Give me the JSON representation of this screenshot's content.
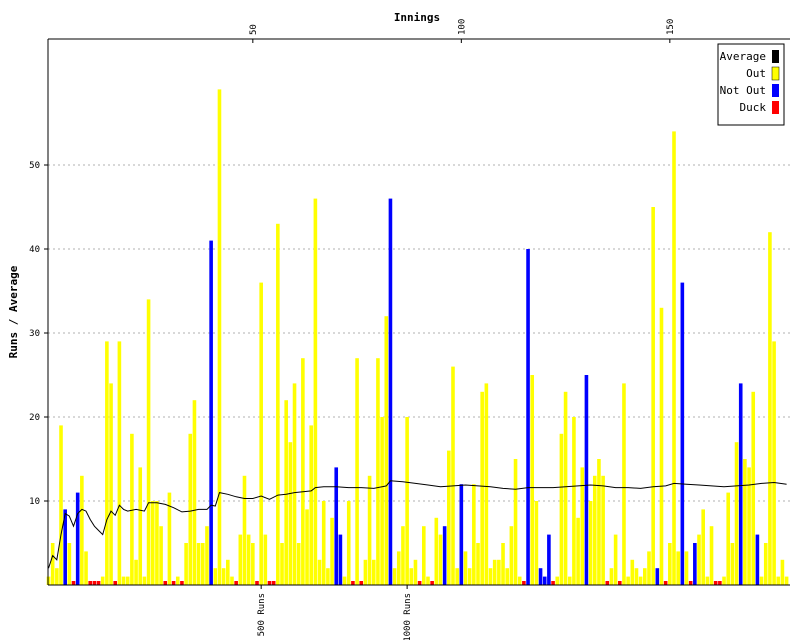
{
  "chart_data": {
    "type": "bar",
    "title": "",
    "xlabel": "Innings",
    "ylabel": "Runs / Average",
    "x_ticks": [
      50,
      100,
      150
    ],
    "y_ticks": [
      10,
      20,
      30,
      40,
      50
    ],
    "ylim": [
      0,
      65
    ],
    "xlim": [
      1,
      178
    ],
    "grid": true,
    "legend_position": "top-right",
    "milestones": [
      {
        "label": "500 Runs",
        "innings": 52
      },
      {
        "label": "1000 Runs",
        "innings": 87
      }
    ],
    "colors": {
      "average": "#000000",
      "out": "#ffff00",
      "not_out": "#0000ff",
      "duck": "#ff0000"
    },
    "series": [
      {
        "name": "Average",
        "type": "line"
      },
      {
        "name": "Out",
        "type": "bar"
      },
      {
        "name": "Not Out",
        "type": "bar"
      },
      {
        "name": "Duck",
        "type": "bar"
      }
    ],
    "innings": [
      [
        1,
        1,
        "out"
      ],
      [
        2,
        5,
        "out"
      ],
      [
        3,
        2,
        "out"
      ],
      [
        4,
        19,
        "out"
      ],
      [
        5,
        9,
        "not_out"
      ],
      [
        6,
        5,
        "out"
      ],
      [
        7,
        0,
        "duck"
      ],
      [
        8,
        11,
        "not_out"
      ],
      [
        9,
        13,
        "out"
      ],
      [
        10,
        4,
        "out"
      ],
      [
        11,
        0,
        "duck"
      ],
      [
        12,
        0,
        "duck"
      ],
      [
        13,
        0,
        "duck"
      ],
      [
        14,
        1,
        "out"
      ],
      [
        15,
        29,
        "out"
      ],
      [
        16,
        24,
        "out"
      ],
      [
        17,
        0,
        "duck"
      ],
      [
        18,
        29,
        "out"
      ],
      [
        19,
        1,
        "out"
      ],
      [
        20,
        1,
        "out"
      ],
      [
        21,
        18,
        "out"
      ],
      [
        22,
        3,
        "out"
      ],
      [
        23,
        14,
        "out"
      ],
      [
        24,
        1,
        "out"
      ],
      [
        25,
        34,
        "out"
      ],
      [
        26,
        10,
        "out"
      ],
      [
        27,
        10,
        "out"
      ],
      [
        28,
        7,
        "out"
      ],
      [
        29,
        0,
        "duck"
      ],
      [
        30,
        11,
        "out"
      ],
      [
        31,
        0,
        "duck"
      ],
      [
        32,
        1,
        "out"
      ],
      [
        33,
        0,
        "duck"
      ],
      [
        34,
        5,
        "out"
      ],
      [
        35,
        18,
        "out"
      ],
      [
        36,
        22,
        "out"
      ],
      [
        37,
        5,
        "out"
      ],
      [
        38,
        5,
        "out"
      ],
      [
        39,
        7,
        "out"
      ],
      [
        40,
        41,
        "not_out"
      ],
      [
        41,
        2,
        "out"
      ],
      [
        42,
        59,
        "out"
      ],
      [
        43,
        2,
        "out"
      ],
      [
        44,
        3,
        "out"
      ],
      [
        45,
        1,
        "out"
      ],
      [
        46,
        0,
        "duck"
      ],
      [
        47,
        6,
        "out"
      ],
      [
        48,
        13,
        "out"
      ],
      [
        49,
        6,
        "out"
      ],
      [
        50,
        5,
        "out"
      ],
      [
        51,
        0,
        "duck"
      ],
      [
        52,
        36,
        "out"
      ],
      [
        53,
        6,
        "out"
      ],
      [
        54,
        0,
        "duck"
      ],
      [
        55,
        0,
        "duck"
      ],
      [
        56,
        43,
        "out"
      ],
      [
        57,
        5,
        "out"
      ],
      [
        58,
        22,
        "out"
      ],
      [
        59,
        17,
        "out"
      ],
      [
        60,
        24,
        "out"
      ],
      [
        61,
        5,
        "out"
      ],
      [
        62,
        27,
        "out"
      ],
      [
        63,
        9,
        "out"
      ],
      [
        64,
        19,
        "out"
      ],
      [
        65,
        46,
        "out"
      ],
      [
        66,
        3,
        "out"
      ],
      [
        67,
        10,
        "out"
      ],
      [
        68,
        2,
        "out"
      ],
      [
        69,
        8,
        "out"
      ],
      [
        70,
        14,
        "not_out"
      ],
      [
        71,
        6,
        "not_out"
      ],
      [
        72,
        1,
        "out"
      ],
      [
        73,
        10,
        "out"
      ],
      [
        74,
        0,
        "duck"
      ],
      [
        75,
        27,
        "out"
      ],
      [
        76,
        0,
        "duck"
      ],
      [
        77,
        3,
        "out"
      ],
      [
        78,
        13,
        "out"
      ],
      [
        79,
        3,
        "out"
      ],
      [
        80,
        27,
        "out"
      ],
      [
        81,
        20,
        "out"
      ],
      [
        82,
        32,
        "out"
      ],
      [
        83,
        46,
        "not_out"
      ],
      [
        84,
        2,
        "out"
      ],
      [
        85,
        4,
        "out"
      ],
      [
        86,
        7,
        "out"
      ],
      [
        87,
        20,
        "out"
      ],
      [
        88,
        2,
        "out"
      ],
      [
        89,
        3,
        "out"
      ],
      [
        90,
        0,
        "duck"
      ],
      [
        91,
        7,
        "out"
      ],
      [
        92,
        1,
        "out"
      ],
      [
        93,
        0,
        "duck"
      ],
      [
        94,
        8,
        "out"
      ],
      [
        95,
        6,
        "out"
      ],
      [
        96,
        7,
        "not_out"
      ],
      [
        97,
        16,
        "out"
      ],
      [
        98,
        26,
        "out"
      ],
      [
        99,
        2,
        "out"
      ],
      [
        100,
        12,
        "not_out"
      ],
      [
        101,
        4,
        "out"
      ],
      [
        102,
        2,
        "out"
      ],
      [
        103,
        12,
        "out"
      ],
      [
        104,
        5,
        "out"
      ],
      [
        105,
        23,
        "out"
      ],
      [
        106,
        24,
        "out"
      ],
      [
        107,
        2,
        "out"
      ],
      [
        108,
        3,
        "out"
      ],
      [
        109,
        3,
        "out"
      ],
      [
        110,
        5,
        "out"
      ],
      [
        111,
        2,
        "out"
      ],
      [
        112,
        7,
        "out"
      ],
      [
        113,
        15,
        "out"
      ],
      [
        114,
        1,
        "out"
      ],
      [
        115,
        0,
        "duck"
      ],
      [
        116,
        40,
        "not_out"
      ],
      [
        117,
        25,
        "out"
      ],
      [
        118,
        10,
        "out"
      ],
      [
        119,
        2,
        "not_out"
      ],
      [
        120,
        1,
        "not_out"
      ],
      [
        121,
        6,
        "not_out"
      ],
      [
        122,
        0,
        "duck"
      ],
      [
        123,
        1,
        "out"
      ],
      [
        124,
        18,
        "out"
      ],
      [
        125,
        23,
        "out"
      ],
      [
        126,
        1,
        "out"
      ],
      [
        127,
        20,
        "out"
      ],
      [
        128,
        8,
        "out"
      ],
      [
        129,
        14,
        "out"
      ],
      [
        130,
        25,
        "not_out"
      ],
      [
        131,
        10,
        "out"
      ],
      [
        132,
        13,
        "out"
      ],
      [
        133,
        15,
        "out"
      ],
      [
        134,
        13,
        "out"
      ],
      [
        135,
        0,
        "duck"
      ],
      [
        136,
        2,
        "out"
      ],
      [
        137,
        6,
        "out"
      ],
      [
        138,
        0,
        "duck"
      ],
      [
        139,
        24,
        "out"
      ],
      [
        140,
        1,
        "out"
      ],
      [
        141,
        3,
        "out"
      ],
      [
        142,
        2,
        "out"
      ],
      [
        143,
        1,
        "out"
      ],
      [
        144,
        2,
        "out"
      ],
      [
        145,
        4,
        "out"
      ],
      [
        146,
        45,
        "out"
      ],
      [
        147,
        2,
        "not_out"
      ],
      [
        148,
        33,
        "out"
      ],
      [
        149,
        0,
        "duck"
      ],
      [
        150,
        5,
        "out"
      ],
      [
        151,
        54,
        "out"
      ],
      [
        152,
        4,
        "out"
      ],
      [
        153,
        36,
        "not_out"
      ],
      [
        154,
        4,
        "out"
      ],
      [
        155,
        0,
        "duck"
      ],
      [
        156,
        5,
        "not_out"
      ],
      [
        157,
        6,
        "out"
      ],
      [
        158,
        9,
        "out"
      ],
      [
        159,
        1,
        "out"
      ],
      [
        160,
        7,
        "out"
      ],
      [
        161,
        0,
        "duck"
      ],
      [
        162,
        0,
        "duck"
      ],
      [
        163,
        1,
        "out"
      ],
      [
        164,
        11,
        "out"
      ],
      [
        165,
        5,
        "out"
      ],
      [
        166,
        17,
        "out"
      ],
      [
        167,
        24,
        "not_out"
      ],
      [
        168,
        15,
        "out"
      ],
      [
        169,
        14,
        "out"
      ],
      [
        170,
        23,
        "out"
      ],
      [
        171,
        6,
        "not_out"
      ],
      [
        172,
        1,
        "out"
      ],
      [
        173,
        5,
        "out"
      ],
      [
        174,
        42,
        "out"
      ],
      [
        175,
        29,
        "out"
      ],
      [
        176,
        1,
        "out"
      ],
      [
        177,
        3,
        "out"
      ],
      [
        178,
        1,
        "out"
      ]
    ],
    "average_trend": [
      [
        1,
        2.0
      ],
      [
        2,
        3.5
      ],
      [
        3,
        3.0
      ],
      [
        4,
        6.0
      ],
      [
        5,
        8.5
      ],
      [
        6,
        8.2
      ],
      [
        7,
        7.0
      ],
      [
        8,
        8.5
      ],
      [
        9,
        9.0
      ],
      [
        10,
        8.8
      ],
      [
        11,
        7.8
      ],
      [
        12,
        7.0
      ],
      [
        13,
        6.5
      ],
      [
        14,
        6.0
      ],
      [
        15,
        7.8
      ],
      [
        16,
        8.8
      ],
      [
        17,
        8.3
      ],
      [
        18,
        9.5
      ],
      [
        19,
        9.0
      ],
      [
        20,
        8.8
      ],
      [
        22,
        9.0
      ],
      [
        24,
        8.8
      ],
      [
        25,
        9.8
      ],
      [
        27,
        9.8
      ],
      [
        29,
        9.6
      ],
      [
        31,
        9.2
      ],
      [
        33,
        8.7
      ],
      [
        35,
        8.8
      ],
      [
        37,
        9.0
      ],
      [
        39,
        9.0
      ],
      [
        40,
        9.5
      ],
      [
        41,
        9.4
      ],
      [
        42,
        11.0
      ],
      [
        44,
        10.8
      ],
      [
        46,
        10.5
      ],
      [
        48,
        10.3
      ],
      [
        50,
        10.3
      ],
      [
        52,
        10.6
      ],
      [
        54,
        10.2
      ],
      [
        56,
        10.7
      ],
      [
        58,
        10.8
      ],
      [
        60,
        11.0
      ],
      [
        62,
        11.1
      ],
      [
        64,
        11.2
      ],
      [
        65,
        11.6
      ],
      [
        67,
        11.7
      ],
      [
        70,
        11.7
      ],
      [
        73,
        11.6
      ],
      [
        76,
        11.6
      ],
      [
        79,
        11.5
      ],
      [
        82,
        11.8
      ],
      [
        83,
        12.4
      ],
      [
        86,
        12.3
      ],
      [
        89,
        12.1
      ],
      [
        92,
        11.9
      ],
      [
        95,
        11.7
      ],
      [
        98,
        11.8
      ],
      [
        101,
        11.9
      ],
      [
        104,
        11.8
      ],
      [
        107,
        11.7
      ],
      [
        110,
        11.5
      ],
      [
        113,
        11.4
      ],
      [
        116,
        11.6
      ],
      [
        119,
        11.6
      ],
      [
        122,
        11.6
      ],
      [
        125,
        11.7
      ],
      [
        128,
        11.8
      ],
      [
        131,
        11.9
      ],
      [
        134,
        11.8
      ],
      [
        137,
        11.6
      ],
      [
        140,
        11.6
      ],
      [
        143,
        11.5
      ],
      [
        146,
        11.7
      ],
      [
        149,
        11.8
      ],
      [
        151,
        12.1
      ],
      [
        154,
        12.0
      ],
      [
        157,
        11.9
      ],
      [
        160,
        11.8
      ],
      [
        163,
        11.7
      ],
      [
        166,
        11.8
      ],
      [
        169,
        11.9
      ],
      [
        172,
        12.1
      ],
      [
        175,
        12.2
      ],
      [
        178,
        12.0
      ]
    ]
  }
}
